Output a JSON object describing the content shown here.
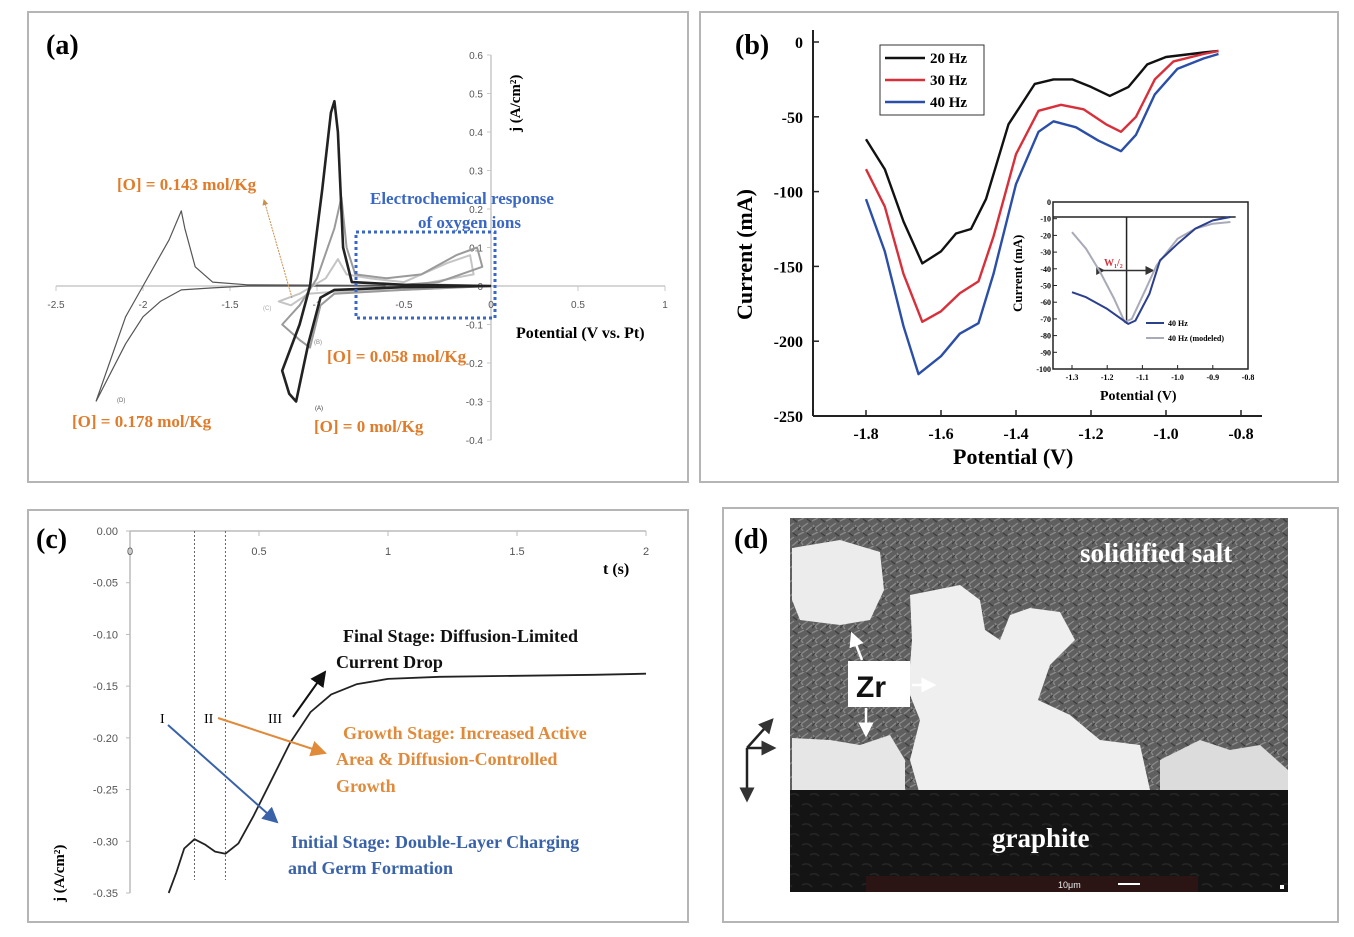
{
  "chart_data": [
    {
      "panel": "(a)",
      "type": "line",
      "xlabel": "Potential (V vs. Pt)",
      "ylabel": "j (A/cm²)",
      "xlim": [
        -2.5,
        1
      ],
      "ylim": [
        -0.4,
        0.6
      ],
      "xticks": [
        "-2.5",
        "-2",
        "-1.5",
        "-1",
        "-0.5",
        "0",
        "0.5",
        "1"
      ],
      "yticks": [
        "-0.4",
        "-0.3",
        "-0.2",
        "-0.1",
        "0",
        "0.1",
        "0.2",
        "0.3",
        "0.4",
        "0.5",
        "0.6"
      ],
      "grid": false,
      "series": [
        {
          "id": "A",
          "tag": "(A)",
          "label": "[O] = 0 mol/Kg",
          "color": "#222222",
          "points": [
            [
              0,
              0
            ],
            [
              -0.5,
              -0.003
            ],
            [
              -0.9,
              -0.01
            ],
            [
              -0.98,
              -0.03
            ],
            [
              -1.05,
              -0.15
            ],
            [
              -1.12,
              -0.3
            ],
            [
              -1.16,
              -0.28
            ],
            [
              -1.2,
              -0.22
            ],
            [
              -1.1,
              -0.1
            ],
            [
              -1.04,
              0
            ],
            [
              -0.97,
              0.25
            ],
            [
              -0.92,
              0.45
            ],
            [
              -0.9,
              0.48
            ],
            [
              -0.88,
              0.4
            ],
            [
              -0.85,
              0.1
            ],
            [
              -0.8,
              0.01
            ],
            [
              -0.5,
              0.003
            ],
            [
              0,
              0
            ]
          ]
        },
        {
          "id": "B",
          "tag": "(B)",
          "label": "[O] = 0.058 mol/Kg",
          "color": "#9a9a9a",
          "points": [
            [
              0,
              0
            ],
            [
              -0.5,
              -0.01
            ],
            [
              -0.9,
              -0.02
            ],
            [
              -0.98,
              -0.05
            ],
            [
              -1.04,
              -0.16
            ],
            [
              -1.1,
              -0.14
            ],
            [
              -1.2,
              -0.1
            ],
            [
              -1.1,
              -0.05
            ],
            [
              -1.0,
              0.02
            ],
            [
              -0.9,
              0.15
            ],
            [
              -0.86,
              0.23
            ],
            [
              -0.83,
              0.1
            ],
            [
              -0.78,
              0.03
            ],
            [
              -0.6,
              0.02
            ],
            [
              -0.4,
              0.03
            ],
            [
              -0.2,
              0.08
            ],
            [
              -0.08,
              0.1
            ],
            [
              -0.05,
              0.05
            ],
            [
              -0.3,
              0.01
            ],
            [
              -0.6,
              0.0
            ],
            [
              0,
              0
            ]
          ]
        },
        {
          "id": "C",
          "tag": "(C)",
          "label": "[O] = 0.143 mol/Kg",
          "color": "#c4c4c4",
          "points": [
            [
              0,
              0
            ],
            [
              -0.5,
              -0.01
            ],
            [
              -0.9,
              -0.015
            ],
            [
              -1.05,
              -0.02
            ],
            [
              -1.15,
              -0.05
            ],
            [
              -1.22,
              -0.04
            ],
            [
              -1.1,
              -0.02
            ],
            [
              -0.95,
              0.02
            ],
            [
              -0.88,
              0.07
            ],
            [
              -0.83,
              0.03
            ],
            [
              -0.7,
              0.02
            ],
            [
              -0.5,
              0.01
            ],
            [
              -0.25,
              0.06
            ],
            [
              -0.12,
              0.08
            ],
            [
              -0.1,
              0.03
            ],
            [
              -0.4,
              0.005
            ],
            [
              0,
              0
            ]
          ]
        },
        {
          "id": "D",
          "tag": "(D)",
          "label": "[O] = 0.178 mol/Kg",
          "color": "#555555",
          "points": [
            [
              -2.27,
              -0.3
            ],
            [
              -2.1,
              -0.15
            ],
            [
              -2.0,
              -0.08
            ],
            [
              -1.9,
              -0.04
            ],
            [
              -1.78,
              -0.01
            ],
            [
              -1.6,
              -0.005
            ],
            [
              -1.4,
              0
            ],
            [
              0,
              0
            ],
            [
              -1.4,
              0.003
            ],
            [
              -1.6,
              0.01
            ],
            [
              -1.7,
              0.05
            ],
            [
              -1.76,
              0.15
            ],
            [
              -1.78,
              0.195
            ],
            [
              -1.85,
              0.12
            ],
            [
              -2.0,
              0.0
            ],
            [
              -2.1,
              -0.08
            ],
            [
              -2.27,
              -0.3
            ]
          ]
        }
      ],
      "annotations": {
        "panel_label": "(a)",
        "box_title_1": "Electrochemical response",
        "box_title_2": "of oxygen ions",
        "box_color": "#3a66c4",
        "label_color": "#e07b2a"
      }
    },
    {
      "panel": "(b)",
      "type": "line",
      "xlabel": "Potential (V)",
      "ylabel": "Current (mA)",
      "xlim": [
        -1.95,
        -0.75
      ],
      "ylim": [
        -250,
        0
      ],
      "xticks": [
        "-1.8",
        "-1.6",
        "-1.4",
        "-1.2",
        "-1.0",
        "-0.8"
      ],
      "yticks": [
        "0",
        "-50",
        "-100",
        "-150",
        "-200",
        "-250"
      ],
      "legend": "top-left",
      "series": [
        {
          "name": "20 Hz",
          "color": "#111111",
          "points": [
            [
              -1.8,
              -65
            ],
            [
              -1.75,
              -85
            ],
            [
              -1.7,
              -120
            ],
            [
              -1.65,
              -148
            ],
            [
              -1.6,
              -140
            ],
            [
              -1.56,
              -128
            ],
            [
              -1.52,
              -125
            ],
            [
              -1.48,
              -105
            ],
            [
              -1.42,
              -55
            ],
            [
              -1.35,
              -28
            ],
            [
              -1.3,
              -25
            ],
            [
              -1.25,
              -25
            ],
            [
              -1.2,
              -30
            ],
            [
              -1.15,
              -36
            ],
            [
              -1.1,
              -30
            ],
            [
              -1.05,
              -15
            ],
            [
              -1.0,
              -10
            ],
            [
              -0.9,
              -7
            ],
            [
              -0.86,
              -6
            ]
          ]
        },
        {
          "name": "30 Hz",
          "color": "#d8303a",
          "points": [
            [
              -1.8,
              -85
            ],
            [
              -1.75,
              -110
            ],
            [
              -1.7,
              -155
            ],
            [
              -1.65,
              -187
            ],
            [
              -1.6,
              -180
            ],
            [
              -1.55,
              -168
            ],
            [
              -1.5,
              -160
            ],
            [
              -1.46,
              -130
            ],
            [
              -1.4,
              -75
            ],
            [
              -1.34,
              -46
            ],
            [
              -1.28,
              -42
            ],
            [
              -1.22,
              -45
            ],
            [
              -1.16,
              -55
            ],
            [
              -1.12,
              -60
            ],
            [
              -1.08,
              -50
            ],
            [
              -1.03,
              -25
            ],
            [
              -0.98,
              -13
            ],
            [
              -0.9,
              -8
            ],
            [
              -0.86,
              -6
            ]
          ]
        },
        {
          "name": "40 Hz",
          "color": "#2b4fa8",
          "points": [
            [
              -1.8,
              -105
            ],
            [
              -1.75,
              -140
            ],
            [
              -1.7,
              -190
            ],
            [
              -1.66,
              -222
            ],
            [
              -1.6,
              -210
            ],
            [
              -1.55,
              -195
            ],
            [
              -1.5,
              -188
            ],
            [
              -1.46,
              -155
            ],
            [
              -1.4,
              -95
            ],
            [
              -1.34,
              -60
            ],
            [
              -1.3,
              -53
            ],
            [
              -1.24,
              -57
            ],
            [
              -1.18,
              -66
            ],
            [
              -1.12,
              -73
            ],
            [
              -1.08,
              -62
            ],
            [
              -1.03,
              -35
            ],
            [
              -0.97,
              -18
            ],
            [
              -0.9,
              -11
            ],
            [
              -0.86,
              -8
            ]
          ]
        }
      ],
      "inset": {
        "xlabel": "Potential (V)",
        "ylabel": "Current (mA)",
        "xlim": [
          -1.3,
          -0.8
        ],
        "ylim": [
          -100,
          0
        ],
        "xticks": [
          "-1.3",
          "-1.2",
          "-1.1",
          "-1.0",
          "-0.9",
          "-0.8"
        ],
        "yticks": [
          "0",
          "-10",
          "-20",
          "-30",
          "-40",
          "-50",
          "-60",
          "-70",
          "-80",
          "-90",
          "-100"
        ],
        "annotation": "W₁/₂",
        "annotation_color": "#d8303a",
        "series": [
          {
            "name": "40 Hz",
            "color": "#2b3f8f",
            "points": [
              [
                -1.3,
                -54
              ],
              [
                -1.26,
                -57
              ],
              [
                -1.2,
                -64
              ],
              [
                -1.16,
                -70
              ],
              [
                -1.14,
                -73
              ],
              [
                -1.12,
                -71
              ],
              [
                -1.08,
                -55
              ],
              [
                -1.05,
                -35
              ],
              [
                -1.0,
                -25
              ],
              [
                -0.95,
                -16
              ],
              [
                -0.9,
                -11
              ],
              [
                -0.85,
                -9
              ]
            ]
          },
          {
            "name": "40 Hz (modeled)",
            "color": "#a8aab8",
            "points": [
              [
                -1.3,
                -18
              ],
              [
                -1.26,
                -28
              ],
              [
                -1.22,
                -42
              ],
              [
                -1.18,
                -58
              ],
              [
                -1.15,
                -72
              ],
              [
                -1.13,
                -70
              ],
              [
                -1.09,
                -52
              ],
              [
                -1.06,
                -38
              ],
              [
                -1.0,
                -22
              ],
              [
                -0.95,
                -16
              ],
              [
                -0.9,
                -13
              ],
              [
                -0.85,
                -12
              ]
            ]
          }
        ]
      }
    },
    {
      "panel": "(c)",
      "type": "line",
      "xlabel": "t (s)",
      "ylabel": "j (A/cm²)",
      "xlim": [
        0,
        2
      ],
      "ylim": [
        -0.35,
        0
      ],
      "xticks": [
        "0",
        "0.5",
        "1",
        "1.5",
        "2"
      ],
      "yticks": [
        "0.00",
        "-0.05",
        "-0.10",
        "-0.15",
        "-0.20",
        "-0.25",
        "-0.30",
        "-0.35"
      ],
      "stage_boundaries": [
        0.25,
        0.37
      ],
      "series": [
        {
          "color": "#222222",
          "points": [
            [
              0.15,
              -0.35
            ],
            [
              0.18,
              -0.33
            ],
            [
              0.21,
              -0.307
            ],
            [
              0.25,
              -0.298
            ],
            [
              0.29,
              -0.303
            ],
            [
              0.33,
              -0.31
            ],
            [
              0.37,
              -0.312
            ],
            [
              0.42,
              -0.302
            ],
            [
              0.48,
              -0.275
            ],
            [
              0.55,
              -0.24
            ],
            [
              0.62,
              -0.205
            ],
            [
              0.7,
              -0.175
            ],
            [
              0.78,
              -0.158
            ],
            [
              0.88,
              -0.148
            ],
            [
              1.0,
              -0.143
            ],
            [
              1.2,
              -0.141
            ],
            [
              1.5,
              -0.14
            ],
            [
              1.8,
              -0.139
            ],
            [
              2.0,
              -0.138
            ]
          ]
        }
      ],
      "annotations": {
        "panel_label": "(c)",
        "stage_I": "I",
        "stage_II": "II",
        "stage_III": "III",
        "final_1": "Final Stage: Diffusion-Limited",
        "final_2": "Current Drop",
        "growth_1": "Growth Stage: Increased Active",
        "growth_2": "Area & Diffusion-Controlled",
        "growth_3": "Growth",
        "initial_1": "Initial Stage: Double-Layer Charging",
        "initial_2": "and Germ Formation",
        "initial_color": "#3a62a8",
        "growth_color": "#e08a3a",
        "final_color": "#111111"
      }
    }
  ],
  "panel_d": {
    "panel_label": "(d)",
    "salt_label": "solidified salt",
    "zr_label": "Zr",
    "graphite_label": "graphite",
    "scale_label": "10μm"
  }
}
